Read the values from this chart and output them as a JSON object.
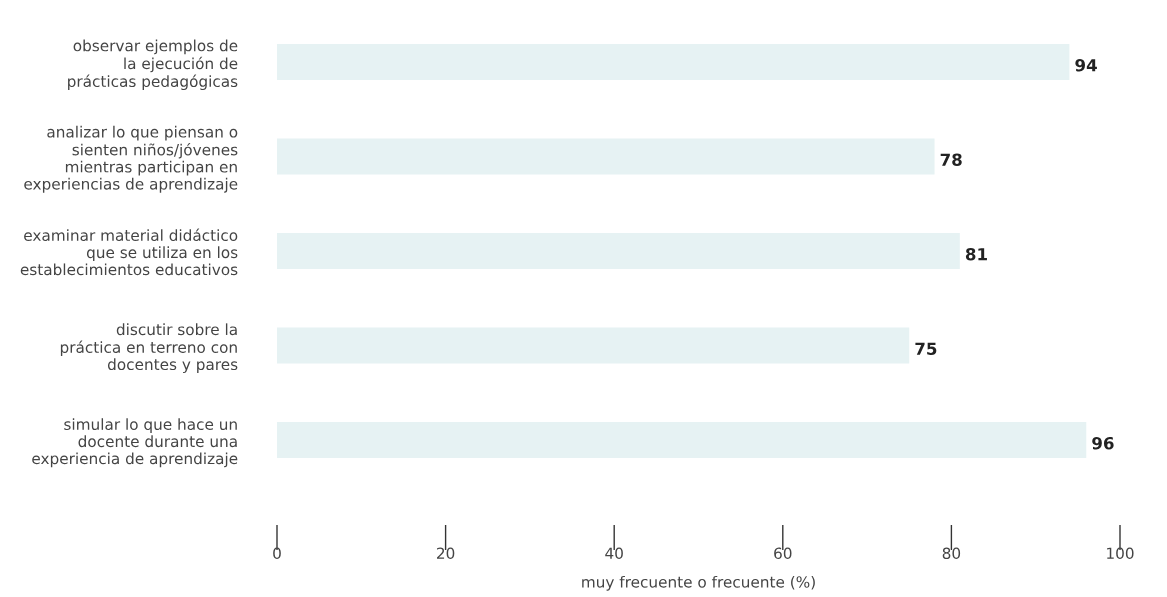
{
  "chart_data": {
    "type": "bar",
    "orientation": "horizontal",
    "xlabel": "muy frecuente o frecuente (%)",
    "categories": [
      "observar ejemplos de\nla ejecución de\nprácticas pedagógicas",
      "analizar lo que piensan o\nsienten niños/jóvenes\nmientras participan en\nexperiencias de aprendizaje",
      "examinar material didáctico\nque se utiliza en los\nestablecimientos educativos",
      "discutir sobre la\npráctica en terreno con\ndocentes y pares",
      "simular lo que hace un\ndocente durante una\nexperiencia de aprendizaje"
    ],
    "values": [
      94,
      78,
      81,
      75,
      96
    ],
    "color": "#e6f2f3",
    "data_labels": true,
    "xlim": [
      0,
      100
    ],
    "xticks": [
      0,
      20,
      40,
      60,
      80,
      100
    ],
    "grid": false,
    "legend": false
  }
}
